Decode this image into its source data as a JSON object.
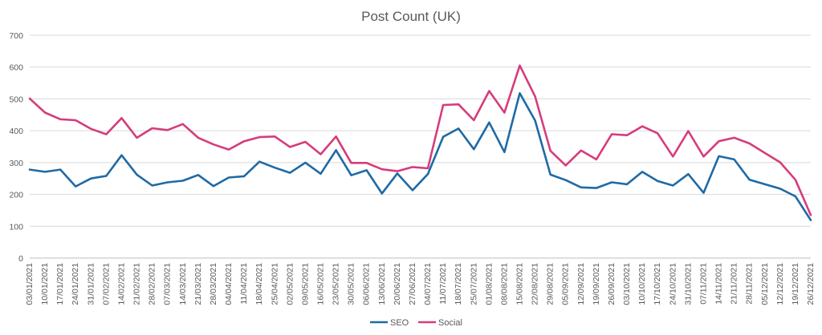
{
  "chart_data": {
    "type": "line",
    "title": "Post Count (UK)",
    "xlabel": "",
    "ylabel": "",
    "ylim": [
      0,
      700
    ],
    "yticks": [
      0,
      100,
      200,
      300,
      400,
      500,
      600,
      700
    ],
    "grid": true,
    "legend_position": "bottom",
    "categories": [
      "03/01/2021",
      "10/01/2021",
      "17/01/2021",
      "24/01/2021",
      "31/01/2021",
      "07/02/2021",
      "14/02/2021",
      "21/02/2021",
      "28/02/2021",
      "07/03/2021",
      "14/03/2021",
      "21/03/2021",
      "28/03/2021",
      "04/04/2021",
      "11/04/2021",
      "18/04/2021",
      "25/04/2021",
      "02/05/2021",
      "09/05/2021",
      "16/05/2021",
      "23/05/2021",
      "30/05/2021",
      "06/06/2021",
      "13/06/2021",
      "20/06/2021",
      "27/06/2021",
      "04/07/2021",
      "11/07/2021",
      "18/07/2021",
      "25/07/2021",
      "01/08/2021",
      "08/08/2021",
      "15/08/2021",
      "22/08/2021",
      "29/08/2021",
      "05/09/2021",
      "12/09/2021",
      "19/09/2021",
      "26/09/2021",
      "03/10/2021",
      "10/10/2021",
      "17/10/2021",
      "24/10/2021",
      "31/10/2021",
      "07/11/2021",
      "14/11/2021",
      "21/11/2021",
      "28/11/2021",
      "05/12/2021",
      "12/12/2021",
      "19/12/2021",
      "26/12/2021"
    ],
    "series": [
      {
        "name": "SEO",
        "color": "#1f6aa5",
        "values": [
          278,
          271,
          278,
          225,
          250,
          258,
          323,
          262,
          228,
          238,
          243,
          261,
          226,
          253,
          257,
          303,
          284,
          268,
          300,
          265,
          339,
          260,
          276,
          203,
          266,
          213,
          264,
          381,
          407,
          342,
          426,
          333,
          518,
          432,
          262,
          245,
          222,
          220,
          238,
          232,
          271,
          242,
          228,
          264,
          205,
          320,
          310,
          246,
          232,
          218,
          194,
          119
        ]
      },
      {
        "name": "Social",
        "color": "#d63c7c",
        "values": [
          501,
          457,
          436,
          433,
          406,
          389,
          440,
          378,
          408,
          402,
          421,
          378,
          357,
          341,
          367,
          380,
          382,
          349,
          365,
          326,
          382,
          299,
          299,
          279,
          273,
          286,
          282,
          481,
          483,
          433,
          525,
          457,
          605,
          508,
          337,
          291,
          338,
          310,
          389,
          386,
          414,
          392,
          319,
          399,
          319,
          367,
          378,
          360,
          330,
          301,
          246,
          135
        ]
      }
    ]
  }
}
